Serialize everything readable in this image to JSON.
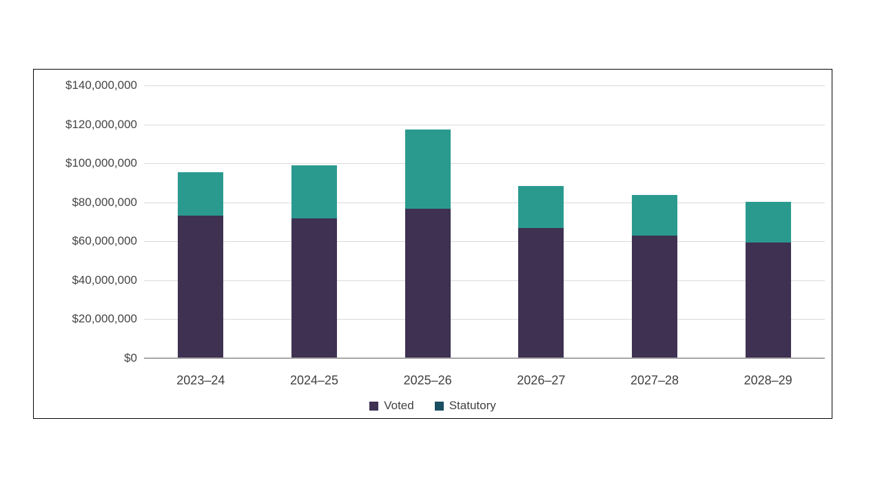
{
  "chart_data": {
    "type": "bar",
    "stacked": true,
    "title": "",
    "xlabel": "",
    "ylabel": "",
    "categories": [
      "2023–24",
      "2024–25",
      "2025–26",
      "2026–27",
      "2027–28",
      "2028–29"
    ],
    "series": [
      {
        "name": "Voted",
        "color": "#3e3151",
        "values": [
          73000000,
          71500000,
          76500000,
          66500000,
          62500000,
          59000000
        ]
      },
      {
        "name": "Statutory",
        "color": "#2a9a8f",
        "values": [
          22000000,
          27000000,
          40500000,
          21500000,
          21000000,
          21000000
        ]
      }
    ],
    "ylim": [
      0,
      140000000
    ],
    "ytick_step": 20000000,
    "yticks": [
      {
        "value": 0,
        "label": "$0"
      },
      {
        "value": 20000000,
        "label": "$20,000,000"
      },
      {
        "value": 40000000,
        "label": "$40,000,000"
      },
      {
        "value": 60000000,
        "label": "$60,000,000"
      },
      {
        "value": 80000000,
        "label": "$80,000,000"
      },
      {
        "value": 100000000,
        "label": "$100,000,000"
      },
      {
        "value": 120000000,
        "label": "$120,000,000"
      },
      {
        "value": 140000000,
        "label": "$140,000,000"
      }
    ],
    "grid": true,
    "legend_position": "bottom"
  },
  "legend": {
    "items": [
      {
        "label": "Voted",
        "color": "#3e3151"
      },
      {
        "label": "Statutory",
        "color": "#1a4f63"
      }
    ]
  },
  "colors": {
    "gridline": "#d9d9d9",
    "axis_line": "#a6a6a6",
    "frame_border": "#000000",
    "tick_text": "#444444"
  }
}
